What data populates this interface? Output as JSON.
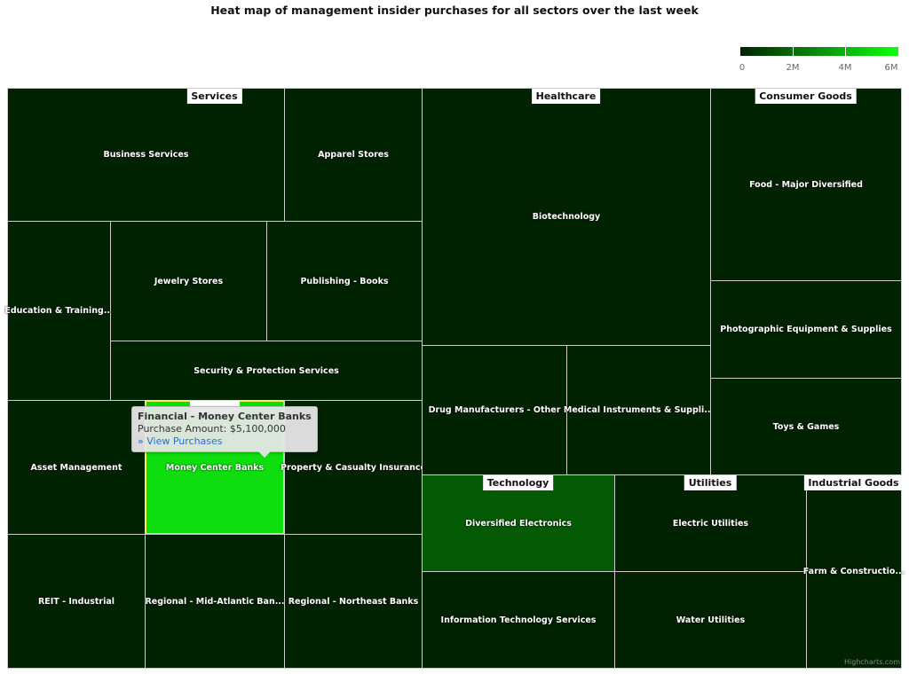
{
  "chart_data": {
    "type": "heatmap",
    "subtype": "treemap",
    "title": "Heat map of management insider purchases for all sectors over the last week",
    "color_axis": {
      "min": 0,
      "max": 6000000,
      "min_color": "#002200",
      "max_color": "#10ff10",
      "ticks": [
        "0",
        "2M",
        "4M",
        "6M"
      ]
    },
    "groups": [
      {
        "name": "Services",
        "label_visible": true,
        "children": [
          {
            "label": "Business Services"
          },
          {
            "label": "Apparel Stores"
          },
          {
            "label": "Education & Training..."
          },
          {
            "label": "Jewelry Stores"
          },
          {
            "label": "Publishing - Books"
          },
          {
            "label": "Security & Protection Services"
          }
        ]
      },
      {
        "name": "Financial",
        "label_visible": false,
        "children": [
          {
            "label": "Asset Management"
          },
          {
            "label": "Money Center Banks",
            "value": 5100000,
            "hovered": true
          },
          {
            "label": "Property & Casualty Insurance"
          },
          {
            "label": "REIT - Industrial"
          },
          {
            "label": "Regional - Mid-Atlantic Ban..."
          },
          {
            "label": "Regional - Northeast Banks"
          }
        ]
      },
      {
        "name": "Healthcare",
        "label_visible": true,
        "children": [
          {
            "label": "Biotechnology"
          },
          {
            "label": "Drug Manufacturers - Other"
          },
          {
            "label": "Medical Instruments & Suppli..."
          }
        ]
      },
      {
        "name": "Consumer Goods",
        "label_visible": true,
        "children": [
          {
            "label": "Food - Major Diversified"
          },
          {
            "label": "Photographic Equipment & Supplies"
          },
          {
            "label": "Toys & Games"
          }
        ]
      },
      {
        "name": "Technology",
        "label_visible": true,
        "children": [
          {
            "label": "Diversified Electronics",
            "value": 1500000
          },
          {
            "label": "Information Technology Services"
          }
        ]
      },
      {
        "name": "Utilities",
        "label_visible": true,
        "children": [
          {
            "label": "Electric Utilities"
          },
          {
            "label": "Water Utilities"
          }
        ]
      },
      {
        "name": "Industrial Goods",
        "label_visible": true,
        "children": [
          {
            "label": "Farm & Constructio..."
          }
        ]
      }
    ],
    "tooltip": {
      "title": "Financial - Money Center Banks",
      "line": "Purchase Amount: $5,100,000",
      "link": "» View Purchases"
    },
    "hover_border_color": "#f5f542"
  },
  "credits": "Highcharts.com"
}
